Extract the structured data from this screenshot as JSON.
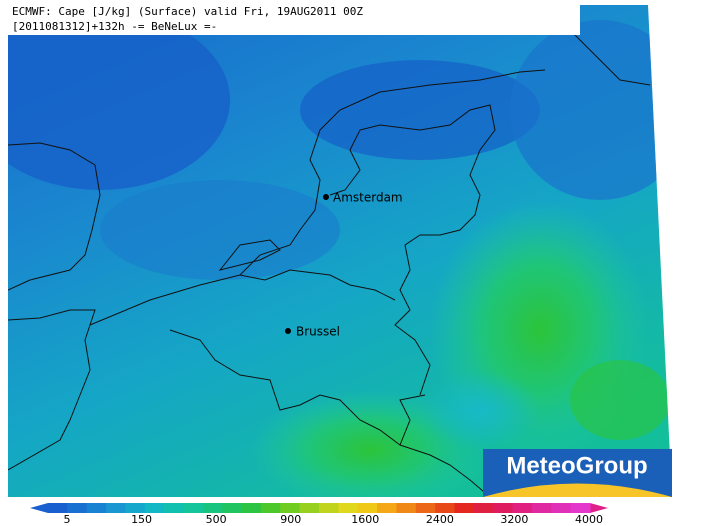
{
  "header": {
    "line1": "ECMWF: Cape [J/kg] (Surface) valid Fri, 19AUG2011 00Z",
    "line2": "[2011081312]+132h  -= BeNeLux =-"
  },
  "cities": [
    {
      "label": "Amsterdam"
    },
    {
      "label": "Brussel"
    }
  ],
  "legend": {
    "labels": [
      "5",
      "150",
      "500",
      "900",
      "1600",
      "2400",
      "3200",
      "4000"
    ]
  },
  "logo": {
    "text": "MeteoGroup"
  }
}
